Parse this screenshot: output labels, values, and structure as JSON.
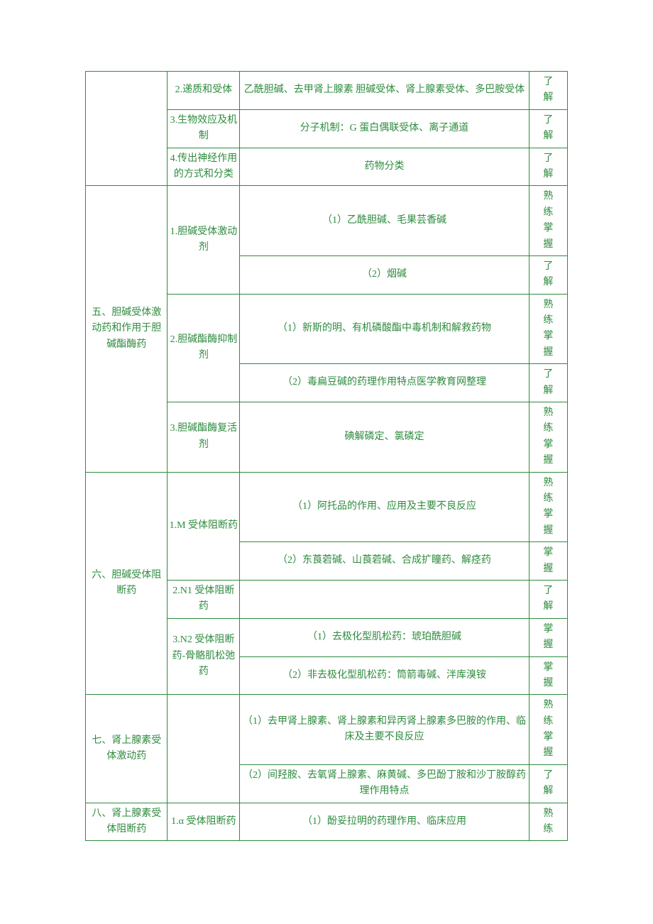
{
  "colors": {
    "border": "#2e8b3e",
    "text": "#2e8b3e",
    "background": "#ffffff"
  },
  "fontSize": 14,
  "rows": [
    {
      "section": "",
      "topic": "2.递质和受体",
      "content": "乙酰胆碱、去甲肾上腺素 胆碱受体、肾上腺素受体、多巴胺受体",
      "level": "了解"
    },
    {
      "section": "",
      "topic": "3.生物效应及机制",
      "content": "分子机制：G 蛋白偶联受体、离子通道",
      "level": "了解"
    },
    {
      "section": "",
      "topic": "4.传出神经作用的方式和分类",
      "content": "药物分类",
      "level": "了解"
    },
    {
      "section": "五、胆碱受体激动药和作用于胆碱酯酶药",
      "topic": "1.胆碱受体激动剂",
      "content": "（1）乙酰胆碱、毛果芸香碱",
      "level": "熟练掌握"
    },
    {
      "section": "",
      "topic": "",
      "content": "（2）烟碱",
      "level": "了解"
    },
    {
      "section": "",
      "topic": "2.胆碱酯酶抑制剂",
      "content": "（1）新斯的明、有机磷酸酯中毒机制和解救药物",
      "level": "熟练掌握"
    },
    {
      "section": "",
      "topic": "",
      "content": "（2）毒扁豆碱的药理作用特点医学教育网整理",
      "level": "了解"
    },
    {
      "section": "",
      "topic": "3.胆碱酯酶复活剂",
      "content": "碘解磷定、氯磷定",
      "level": "熟练掌握"
    },
    {
      "section": "六、胆碱受体阻断药",
      "topic": "1.M 受体阻断药",
      "content": "（1）阿托品的作用、应用及主要不良反应",
      "level": "熟练掌握"
    },
    {
      "section": "",
      "topic": "",
      "content": "（2）东莨菪碱、山莨菪碱、合成扩瞳药、解痉药",
      "level": "掌握"
    },
    {
      "section": "",
      "topic": "2.N1 受体阻断药",
      "content": "",
      "level": "了解"
    },
    {
      "section": "",
      "topic": "3.N2 受体阻断药-骨骼肌松弛药",
      "content": "（1）去极化型肌松药：琥珀酰胆碱",
      "level": "掌握"
    },
    {
      "section": "",
      "topic": "",
      "content": "（2）非去极化型肌松药：筒箭毒碱、泮库溴铵",
      "level": "掌握"
    },
    {
      "section": "七、肾上腺素受体激动药",
      "topic": "",
      "content": "（1）去甲肾上腺素、肾上腺素和异丙肾上腺素多巴胺的作用、临床及主要不良反应",
      "level": "熟练掌握"
    },
    {
      "section": "",
      "topic": "",
      "content": "（2）间羟胺、去氧肾上腺素、麻黄碱、多巴酚丁胺和沙丁胺醇药理作用特点",
      "level": "了解"
    },
    {
      "section": "八、肾上腺素受体阻断药",
      "topic": "1.α 受体阻断药",
      "content": "（1）酚妥拉明的药理作用、临床应用",
      "level": "熟练"
    }
  ]
}
